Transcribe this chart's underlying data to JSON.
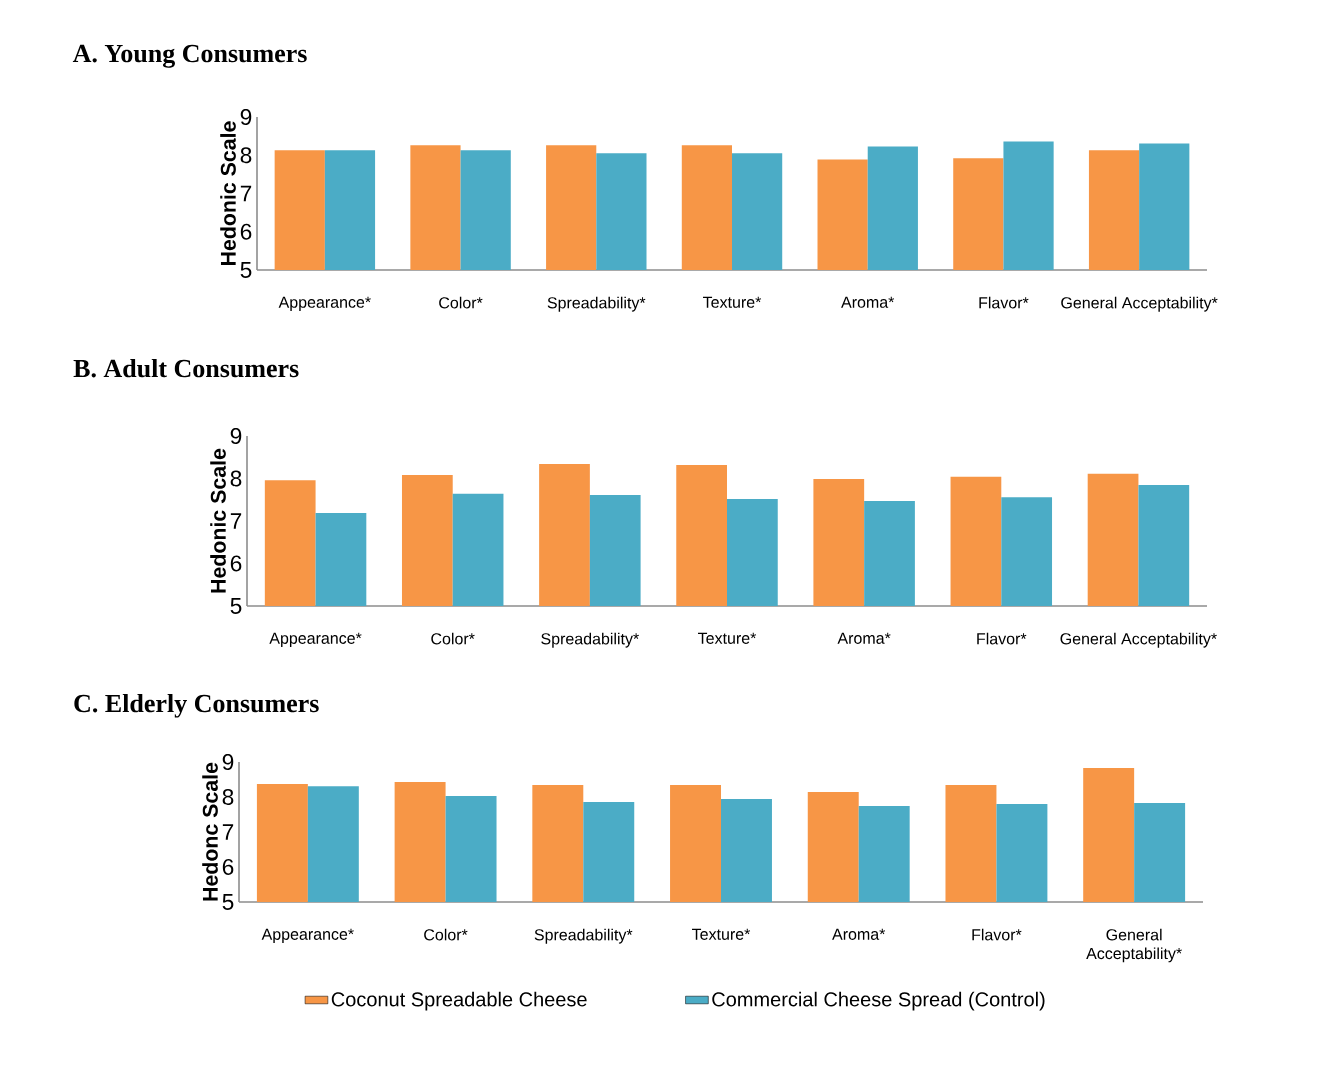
{
  "chart_data": [
    {
      "type": "bar",
      "title": "A.  Young Consumers",
      "ylabel": "Hedonic Scale",
      "categories": [
        "Appearance*",
        "Color*",
        "Spreadability*",
        "Texture*",
        "Aroma*",
        "Flavor*",
        "General Acceptability*"
      ],
      "ylim": [
        5,
        9
      ],
      "yticks": [
        5,
        6,
        7,
        8,
        9
      ],
      "series": [
        {
          "color": "#f79646",
          "values": [
            8.13,
            8.26,
            8.26,
            8.26,
            7.89,
            7.92,
            8.13
          ]
        },
        {
          "color": "#4bacc6",
          "values": [
            8.13,
            8.13,
            8.05,
            8.05,
            8.23,
            8.36,
            8.31
          ]
        }
      ]
    },
    {
      "type": "bar",
      "title": "B.  Adult Consumers",
      "ylabel": "Hedonic Scale",
      "categories": [
        "Appearance*",
        "Color*",
        "Spreadability*",
        "Texture*",
        "Aroma*",
        "Flavor*",
        "General Acceptability*"
      ],
      "ylim": [
        5,
        9
      ],
      "yticks": [
        5,
        6,
        7,
        8,
        9
      ],
      "series": [
        {
          "color": "#f79646",
          "values": [
            7.96,
            8.08,
            8.34,
            8.32,
            7.99,
            8.04,
            8.11
          ]
        },
        {
          "color": "#4bacc6",
          "values": [
            7.19,
            7.64,
            7.61,
            7.52,
            7.47,
            7.56,
            7.85
          ]
        }
      ]
    },
    {
      "type": "bar",
      "title": "C.  Elderly Consumers",
      "ylabel": "Hedonc Scale",
      "categories": [
        "Appearance*",
        "Color*",
        "Spreadability*",
        "Texture*",
        "Aroma*",
        "Flavor*",
        "General Acceptability*"
      ],
      "ylim": [
        5,
        9
      ],
      "yticks": [
        5,
        6,
        7,
        8,
        9
      ],
      "legend": "bottom",
      "series": [
        {
          "name": "Coconut Spreadable Cheese",
          "color": "#f79646",
          "values": [
            8.37,
            8.43,
            8.34,
            8.34,
            8.14,
            8.34,
            8.83
          ]
        },
        {
          "name": "Commercial Cheese Spread (Control)",
          "color": "#4bacc6",
          "values": [
            8.31,
            8.03,
            7.86,
            7.94,
            7.74,
            7.8,
            7.83
          ]
        }
      ]
    }
  ]
}
